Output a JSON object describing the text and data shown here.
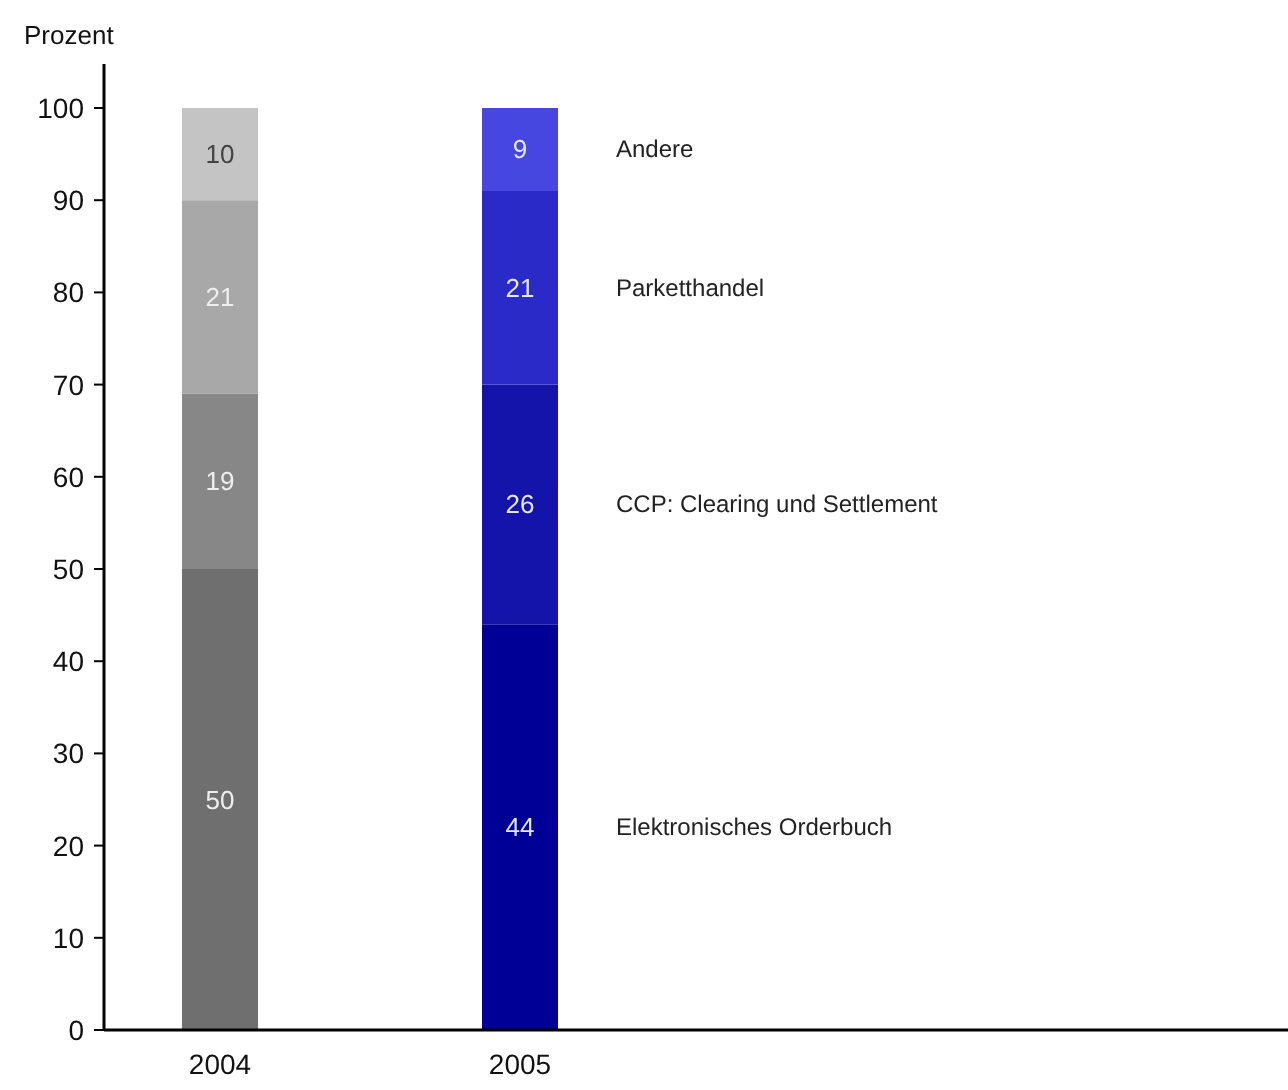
{
  "chart_data": {
    "type": "bar",
    "stacked": true,
    "ylabel": "Prozent",
    "categories": [
      "2004",
      "2005"
    ],
    "series": [
      {
        "name": "Elektronisches Orderbuch",
        "colors": [
          "#6f6f6f",
          "#000096"
        ],
        "values": [
          50,
          44
        ]
      },
      {
        "name": "CCP: Clearing und Settlement",
        "colors": [
          "#878787",
          "#1414aa"
        ],
        "values": [
          19,
          26
        ]
      },
      {
        "name": "Parketthandel",
        "colors": [
          "#a8a8a8",
          "#2a2ac8"
        ],
        "values": [
          21,
          21
        ]
      },
      {
        "name": "Andere",
        "colors": [
          "#c4c4c4",
          "#4646e0"
        ],
        "values": [
          10,
          9
        ]
      }
    ],
    "ylim": [
      0,
      100
    ],
    "yticks": [
      0,
      10,
      20,
      30,
      40,
      50,
      60,
      70,
      80,
      90,
      100
    ],
    "data_labels": true
  }
}
